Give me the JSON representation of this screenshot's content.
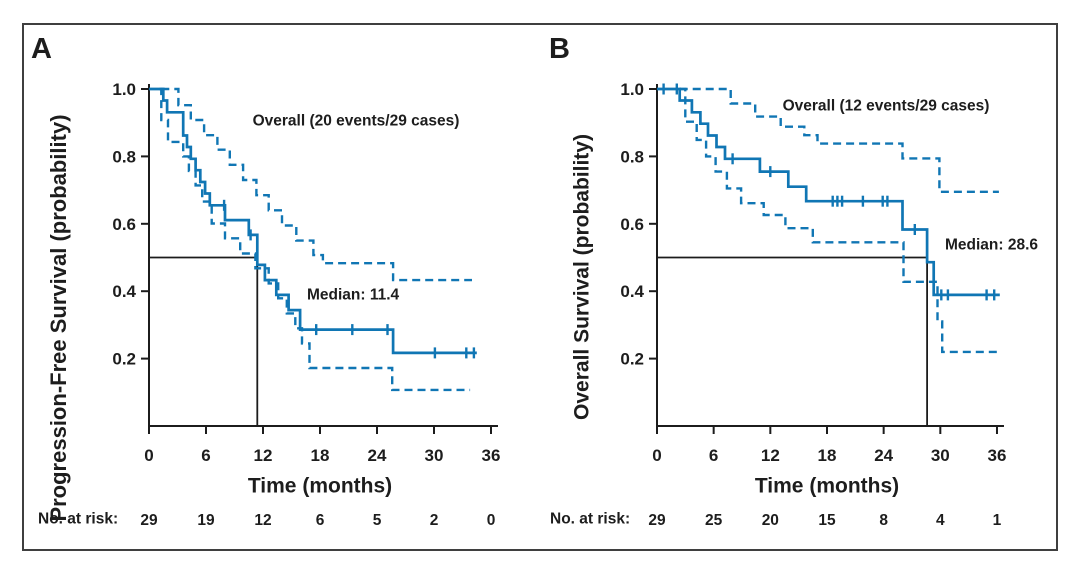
{
  "figure": {
    "background": "#ffffff",
    "border_color": "#3f3f3f",
    "curve_color": "#1076b4",
    "axis_color": "#1c1c1c",
    "text_color": "#1d1d1d"
  },
  "chart_data": [
    {
      "type": "line",
      "subtype": "kaplan-meier",
      "panel_label": "A",
      "annotation": "Overall (20 events/29 cases)",
      "median_label": "Median: 11.4",
      "median_time": 11.4,
      "xlabel": "Time (months)",
      "ylabel": "Progression-Free Survival (probability)",
      "xlim": [
        0,
        36
      ],
      "ylim": [
        0,
        1.0
      ],
      "x_ticks": [
        0,
        6,
        12,
        18,
        24,
        30,
        36
      ],
      "y_ticks": [
        0.2,
        0.4,
        0.6,
        0.8,
        1.0
      ],
      "grid": false,
      "legend": "none",
      "no_at_risk_label": "No. at risk:",
      "no_at_risk": [
        29,
        19,
        12,
        6,
        5,
        2,
        0
      ],
      "series": [
        {
          "name": "PFS estimate",
          "style": "solid",
          "end": 34.5,
          "points": [
            [
              0,
              1.0
            ],
            [
              1.5,
              0.966
            ],
            [
              1.9,
              0.931
            ],
            [
              3.6,
              0.862
            ],
            [
              4.0,
              0.828
            ],
            [
              4.4,
              0.793
            ],
            [
              4.9,
              0.759
            ],
            [
              5.4,
              0.724
            ],
            [
              5.9,
              0.69
            ],
            [
              6.4,
              0.655
            ],
            [
              8.0,
              0.611
            ],
            [
              10.5,
              0.567
            ],
            [
              11.4,
              0.478
            ],
            [
              12.2,
              0.433
            ],
            [
              13.4,
              0.389
            ],
            [
              14.7,
              0.344
            ],
            [
              15.9,
              0.286
            ],
            [
              25.7,
              0.217
            ]
          ],
          "censors": [
            [
              7.9,
              0.655
            ],
            [
              10.7,
              0.567
            ],
            [
              17.6,
              0.286
            ],
            [
              21.4,
              0.286
            ],
            [
              25.1,
              0.286
            ],
            [
              30.1,
              0.217
            ],
            [
              33.4,
              0.217
            ],
            [
              34.2,
              0.217
            ]
          ]
        },
        {
          "name": "95% CI upper",
          "style": "dashed",
          "end": 34.0,
          "points": [
            [
              1.3,
              1.0
            ],
            [
              3.1,
              0.952
            ],
            [
              4.4,
              0.908
            ],
            [
              5.8,
              0.863
            ],
            [
              7.2,
              0.82
            ],
            [
              8.5,
              0.775
            ],
            [
              9.9,
              0.73
            ],
            [
              11.3,
              0.685
            ],
            [
              12.6,
              0.64
            ],
            [
              14.0,
              0.595
            ],
            [
              15.5,
              0.55
            ],
            [
              17.3,
              0.507
            ],
            [
              18.3,
              0.483
            ],
            [
              25.7,
              0.433
            ]
          ],
          "censors": []
        },
        {
          "name": "95% CI lower",
          "style": "dashed",
          "end": 33.8,
          "points": [
            [
              1.1,
              1.0
            ],
            [
              1.3,
              0.908
            ],
            [
              2.0,
              0.843
            ],
            [
              3.6,
              0.8
            ],
            [
              4.2,
              0.757
            ],
            [
              4.9,
              0.714
            ],
            [
              5.6,
              0.666
            ],
            [
              6.6,
              0.601
            ],
            [
              8.0,
              0.557
            ],
            [
              9.6,
              0.512
            ],
            [
              11.2,
              0.468
            ],
            [
              12.6,
              0.423
            ],
            [
              13.6,
              0.379
            ],
            [
              14.5,
              0.334
            ],
            [
              15.4,
              0.29
            ],
            [
              16.1,
              0.245
            ],
            [
              16.9,
              0.172
            ],
            [
              25.6,
              0.107
            ]
          ],
          "censors": []
        }
      ]
    },
    {
      "type": "line",
      "subtype": "kaplan-meier",
      "panel_label": "B",
      "annotation": "Overall (12 events/29 cases)",
      "median_label": "Median: 28.6",
      "median_time": 28.6,
      "xlabel": "Time (months)",
      "ylabel": "Overall Survival (probability)",
      "xlim": [
        0,
        36
      ],
      "ylim": [
        0,
        1.0
      ],
      "x_ticks": [
        0,
        6,
        12,
        18,
        24,
        30,
        36
      ],
      "y_ticks": [
        0.2,
        0.4,
        0.6,
        0.8,
        1.0
      ],
      "grid": false,
      "legend": "none",
      "no_at_risk_label": "No. at risk:",
      "no_at_risk": [
        29,
        25,
        20,
        15,
        8,
        4,
        1
      ],
      "series": [
        {
          "name": "OS estimate",
          "style": "solid",
          "end": 36.3,
          "points": [
            [
              0,
              1.0
            ],
            [
              2.4,
              0.966
            ],
            [
              3.7,
              0.931
            ],
            [
              4.6,
              0.897
            ],
            [
              5.4,
              0.862
            ],
            [
              6.3,
              0.828
            ],
            [
              7.2,
              0.793
            ],
            [
              10.9,
              0.755
            ],
            [
              13.9,
              0.71
            ],
            [
              15.8,
              0.667
            ],
            [
              26.0,
              0.583
            ],
            [
              28.6,
              0.486
            ],
            [
              29.3,
              0.389
            ]
          ],
          "censors": [
            [
              0.7,
              1.0
            ],
            [
              2.1,
              1.0
            ],
            [
              8.0,
              0.793
            ],
            [
              12.0,
              0.755
            ],
            [
              18.6,
              0.667
            ],
            [
              19.1,
              0.667
            ],
            [
              19.6,
              0.667
            ],
            [
              21.8,
              0.667
            ],
            [
              23.9,
              0.667
            ],
            [
              24.4,
              0.667
            ],
            [
              27.3,
              0.583
            ],
            [
              30.1,
              0.389
            ],
            [
              30.8,
              0.389
            ],
            [
              34.9,
              0.389
            ],
            [
              35.7,
              0.389
            ]
          ],
          "style_note": "solid"
        },
        {
          "name": "95% CI upper",
          "style": "dashed",
          "end": 36.2,
          "points": [
            [
              2.4,
              1.0
            ],
            [
              7.8,
              0.957
            ],
            [
              10.4,
              0.918
            ],
            [
              13.1,
              0.888
            ],
            [
              15.6,
              0.863
            ],
            [
              17.0,
              0.838
            ],
            [
              26.0,
              0.794
            ],
            [
              29.9,
              0.695
            ]
          ],
          "censors": []
        },
        {
          "name": "95% CI lower",
          "style": "dashed",
          "end": 36.2,
          "points": [
            [
              2.4,
              1.0
            ],
            [
              3.0,
              0.903
            ],
            [
              4.2,
              0.849
            ],
            [
              5.2,
              0.8
            ],
            [
              6.2,
              0.755
            ],
            [
              7.4,
              0.705
            ],
            [
              8.9,
              0.661
            ],
            [
              11.3,
              0.626
            ],
            [
              13.6,
              0.587
            ],
            [
              16.5,
              0.545
            ],
            [
              26.1,
              0.428
            ],
            [
              29.7,
              0.31
            ],
            [
              30.2,
              0.22
            ]
          ],
          "censors": []
        }
      ]
    }
  ]
}
